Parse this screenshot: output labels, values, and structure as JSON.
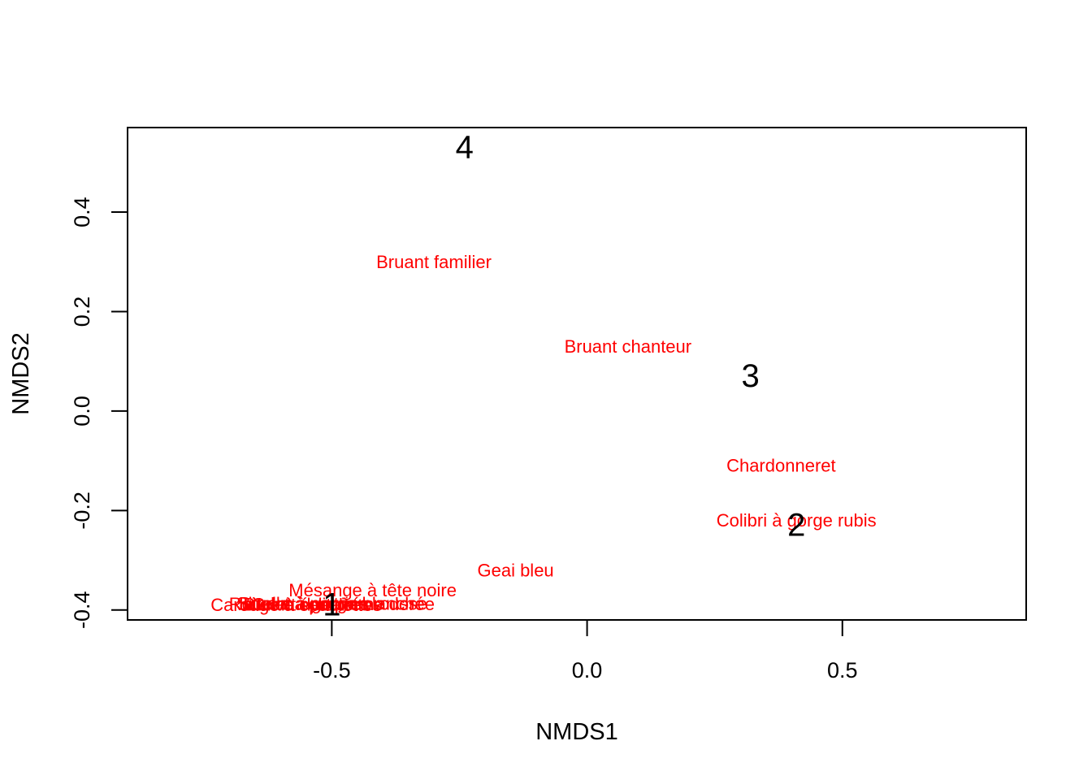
{
  "chart_data": {
    "type": "scatter",
    "title": "",
    "xlabel": "NMDS1",
    "ylabel": "NMDS2",
    "xlim": [
      -0.9,
      0.86
    ],
    "ylim": [
      -0.42,
      0.57
    ],
    "x_ticks": [
      -0.5,
      0.0,
      0.5
    ],
    "x_tick_labels": [
      "-0.5",
      "0.0",
      "0.5"
    ],
    "y_ticks": [
      -0.4,
      -0.2,
      0.0,
      0.2,
      0.4
    ],
    "y_tick_labels": [
      "-0.4",
      "-0.2",
      "0.0",
      "0.2",
      "0.4"
    ],
    "grid": false,
    "legend": "none",
    "series": [
      {
        "color": "#000000",
        "points": [
          {
            "x": -0.5,
            "y": -0.39,
            "label": "1"
          },
          {
            "x": 0.41,
            "y": -0.23,
            "label": "2"
          },
          {
            "x": 0.32,
            "y": 0.07,
            "label": "3"
          },
          {
            "x": -0.24,
            "y": 0.53,
            "label": "4"
          }
        ]
      },
      {
        "color": "#ff0000",
        "points": [
          {
            "x": -0.3,
            "y": 0.3,
            "label": "Bruant familier"
          },
          {
            "x": 0.08,
            "y": 0.13,
            "label": "Bruant chanteur"
          },
          {
            "x": 0.38,
            "y": -0.11,
            "label": "Chardonneret"
          },
          {
            "x": 0.41,
            "y": -0.22,
            "label": "Colibri à gorge rubis"
          },
          {
            "x": -0.14,
            "y": -0.32,
            "label": "Geai bleu"
          },
          {
            "x": -0.42,
            "y": -0.36,
            "label": "Mésange à tête noire"
          },
          {
            "x": -0.5,
            "y": -0.387,
            "label": "Bruant à gorge blanche"
          },
          {
            "x": -0.5,
            "y": -0.387,
            "label": "Sittelle à poitrine rousse"
          },
          {
            "x": -0.55,
            "y": -0.389,
            "label": "Grive solitaire"
          },
          {
            "x": -0.55,
            "y": -0.389,
            "label": "Bruant des prés"
          },
          {
            "x": -0.57,
            "y": -0.39,
            "label": "Carouge à épaulettes"
          },
          {
            "x": -0.5,
            "y": -0.388,
            "label": "Roitelet à couronne dorée"
          }
        ]
      }
    ]
  }
}
